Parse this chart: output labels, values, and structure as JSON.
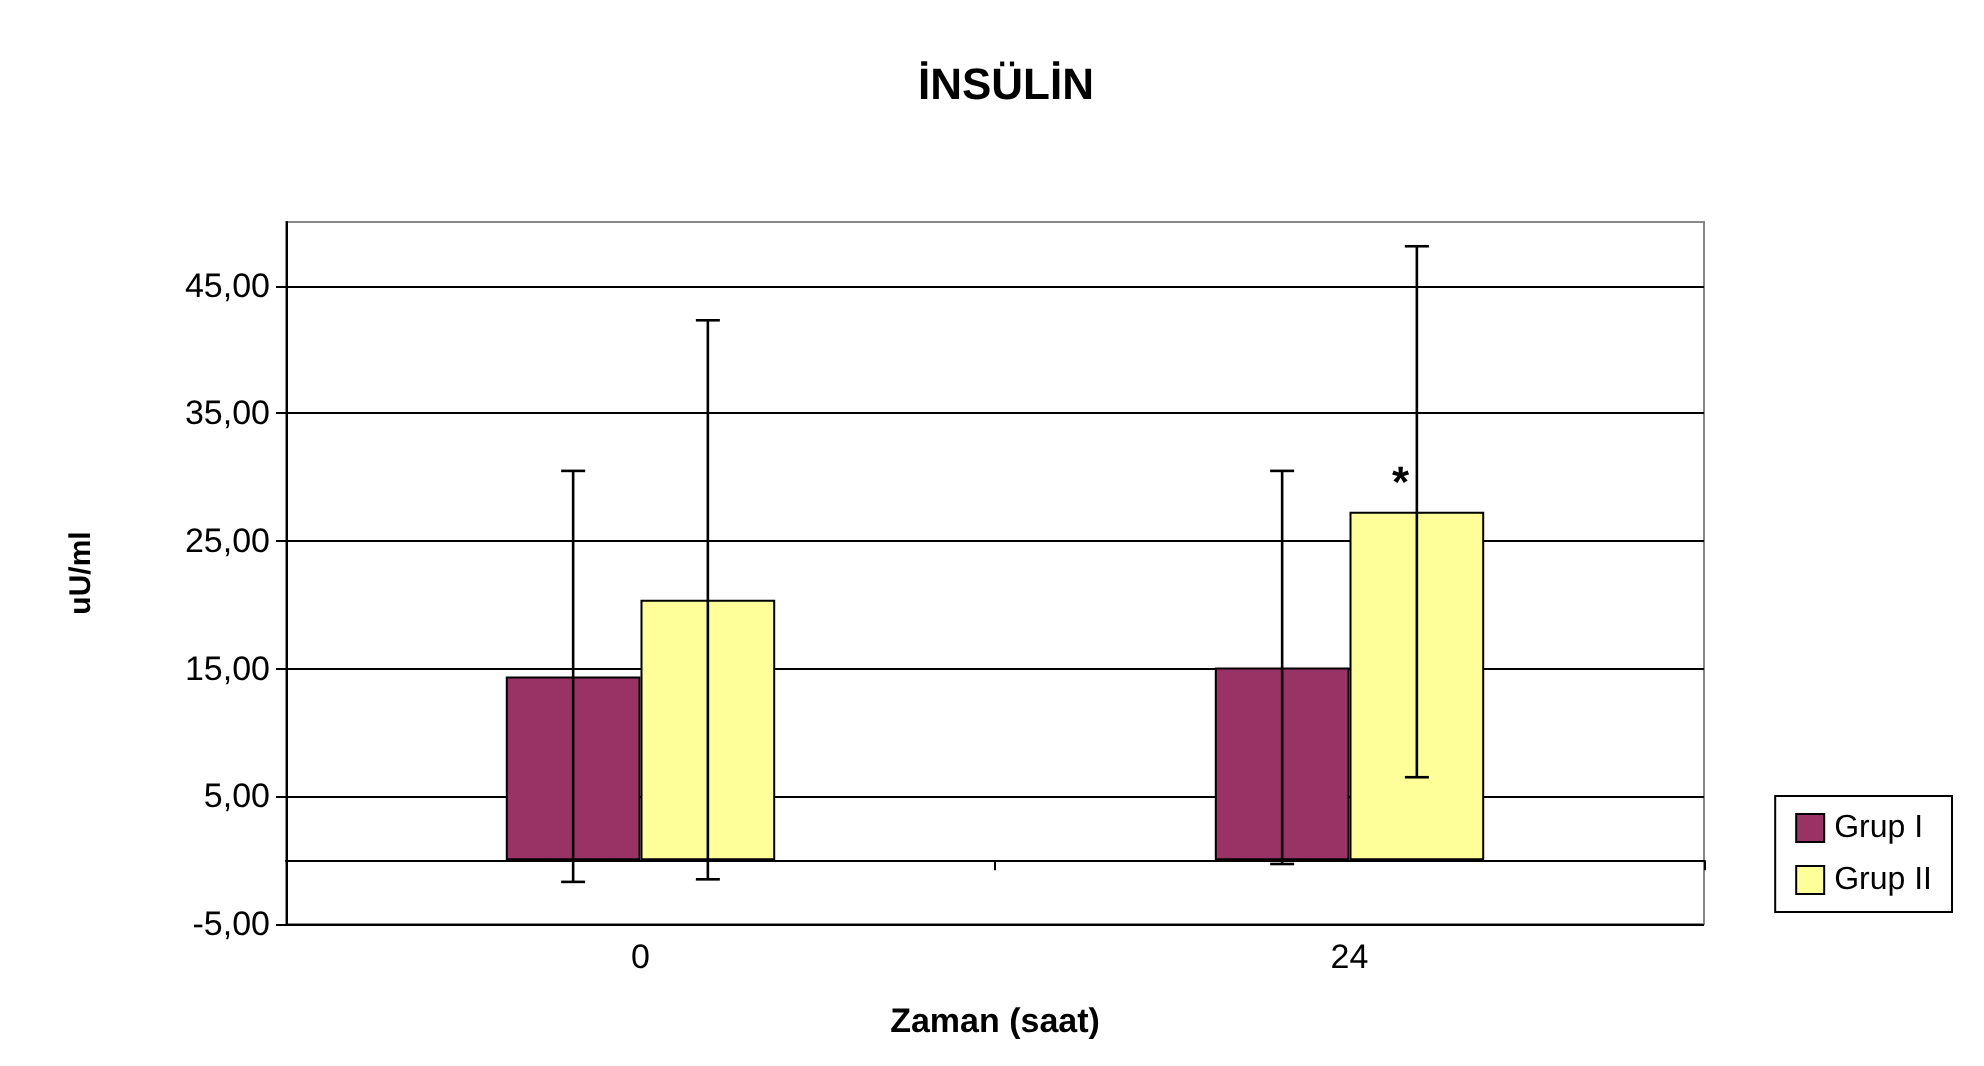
{
  "chart_data": {
    "type": "bar",
    "title": "İNSÜLİN",
    "xlabel": "Zaman (saat)",
    "ylabel": "uU/ml",
    "categories": [
      "0",
      "24"
    ],
    "series": [
      {
        "name": "Grup I",
        "color": "#993366",
        "values": [
          14.4,
          15.1
        ],
        "errors": [
          16.1,
          15.4
        ]
      },
      {
        "name": "Grup II",
        "color": "#ffff99",
        "values": [
          20.4,
          27.3
        ],
        "errors": [
          21.9,
          20.8
        ]
      }
    ],
    "ylim": [
      -5,
      50
    ],
    "yticks": [
      {
        "value": -5,
        "label": "-5,00"
      },
      {
        "value": 5,
        "label": "5,00"
      },
      {
        "value": 15,
        "label": "15,00"
      },
      {
        "value": 25,
        "label": "25,00"
      },
      {
        "value": 35,
        "label": "35,00"
      },
      {
        "value": 45,
        "label": "45,00"
      }
    ],
    "grid": "y",
    "legend": "right",
    "annotations": [
      "*"
    ]
  }
}
